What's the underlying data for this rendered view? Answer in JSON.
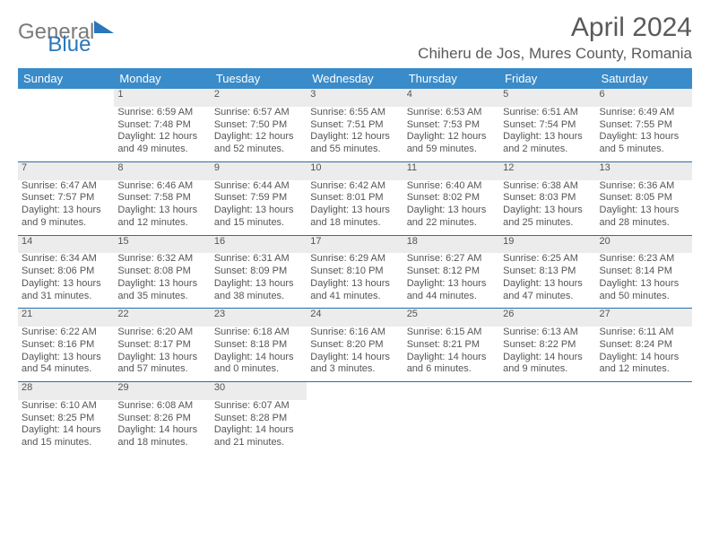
{
  "logo": {
    "part1": "General",
    "part2": "Blue"
  },
  "header": {
    "title": "April 2024",
    "location": "Chiheru de Jos, Mures County, Romania"
  },
  "weekdays": [
    "Sunday",
    "Monday",
    "Tuesday",
    "Wednesday",
    "Thursday",
    "Friday",
    "Saturday"
  ],
  "colors": {
    "header_bg": "#3a8bc9",
    "header_text": "#ffffff",
    "daynum_bg": "#ececec",
    "border": "#2a6fa8",
    "body_text": "#555555",
    "logo_gray": "#7a7a7a",
    "logo_blue": "#2a77bb"
  },
  "weeks": [
    [
      null,
      {
        "n": "1",
        "l": [
          "Sunrise: 6:59 AM",
          "Sunset: 7:48 PM",
          "Daylight: 12 hours and 49 minutes."
        ]
      },
      {
        "n": "2",
        "l": [
          "Sunrise: 6:57 AM",
          "Sunset: 7:50 PM",
          "Daylight: 12 hours and 52 minutes."
        ]
      },
      {
        "n": "3",
        "l": [
          "Sunrise: 6:55 AM",
          "Sunset: 7:51 PM",
          "Daylight: 12 hours and 55 minutes."
        ]
      },
      {
        "n": "4",
        "l": [
          "Sunrise: 6:53 AM",
          "Sunset: 7:53 PM",
          "Daylight: 12 hours and 59 minutes."
        ]
      },
      {
        "n": "5",
        "l": [
          "Sunrise: 6:51 AM",
          "Sunset: 7:54 PM",
          "Daylight: 13 hours and 2 minutes."
        ]
      },
      {
        "n": "6",
        "l": [
          "Sunrise: 6:49 AM",
          "Sunset: 7:55 PM",
          "Daylight: 13 hours and 5 minutes."
        ]
      }
    ],
    [
      {
        "n": "7",
        "l": [
          "Sunrise: 6:47 AM",
          "Sunset: 7:57 PM",
          "Daylight: 13 hours and 9 minutes."
        ]
      },
      {
        "n": "8",
        "l": [
          "Sunrise: 6:46 AM",
          "Sunset: 7:58 PM",
          "Daylight: 13 hours and 12 minutes."
        ]
      },
      {
        "n": "9",
        "l": [
          "Sunrise: 6:44 AM",
          "Sunset: 7:59 PM",
          "Daylight: 13 hours and 15 minutes."
        ]
      },
      {
        "n": "10",
        "l": [
          "Sunrise: 6:42 AM",
          "Sunset: 8:01 PM",
          "Daylight: 13 hours and 18 minutes."
        ]
      },
      {
        "n": "11",
        "l": [
          "Sunrise: 6:40 AM",
          "Sunset: 8:02 PM",
          "Daylight: 13 hours and 22 minutes."
        ]
      },
      {
        "n": "12",
        "l": [
          "Sunrise: 6:38 AM",
          "Sunset: 8:03 PM",
          "Daylight: 13 hours and 25 minutes."
        ]
      },
      {
        "n": "13",
        "l": [
          "Sunrise: 6:36 AM",
          "Sunset: 8:05 PM",
          "Daylight: 13 hours and 28 minutes."
        ]
      }
    ],
    [
      {
        "n": "14",
        "l": [
          "Sunrise: 6:34 AM",
          "Sunset: 8:06 PM",
          "Daylight: 13 hours and 31 minutes."
        ]
      },
      {
        "n": "15",
        "l": [
          "Sunrise: 6:32 AM",
          "Sunset: 8:08 PM",
          "Daylight: 13 hours and 35 minutes."
        ]
      },
      {
        "n": "16",
        "l": [
          "Sunrise: 6:31 AM",
          "Sunset: 8:09 PM",
          "Daylight: 13 hours and 38 minutes."
        ]
      },
      {
        "n": "17",
        "l": [
          "Sunrise: 6:29 AM",
          "Sunset: 8:10 PM",
          "Daylight: 13 hours and 41 minutes."
        ]
      },
      {
        "n": "18",
        "l": [
          "Sunrise: 6:27 AM",
          "Sunset: 8:12 PM",
          "Daylight: 13 hours and 44 minutes."
        ]
      },
      {
        "n": "19",
        "l": [
          "Sunrise: 6:25 AM",
          "Sunset: 8:13 PM",
          "Daylight: 13 hours and 47 minutes."
        ]
      },
      {
        "n": "20",
        "l": [
          "Sunrise: 6:23 AM",
          "Sunset: 8:14 PM",
          "Daylight: 13 hours and 50 minutes."
        ]
      }
    ],
    [
      {
        "n": "21",
        "l": [
          "Sunrise: 6:22 AM",
          "Sunset: 8:16 PM",
          "Daylight: 13 hours and 54 minutes."
        ]
      },
      {
        "n": "22",
        "l": [
          "Sunrise: 6:20 AM",
          "Sunset: 8:17 PM",
          "Daylight: 13 hours and 57 minutes."
        ]
      },
      {
        "n": "23",
        "l": [
          "Sunrise: 6:18 AM",
          "Sunset: 8:18 PM",
          "Daylight: 14 hours and 0 minutes."
        ]
      },
      {
        "n": "24",
        "l": [
          "Sunrise: 6:16 AM",
          "Sunset: 8:20 PM",
          "Daylight: 14 hours and 3 minutes."
        ]
      },
      {
        "n": "25",
        "l": [
          "Sunrise: 6:15 AM",
          "Sunset: 8:21 PM",
          "Daylight: 14 hours and 6 minutes."
        ]
      },
      {
        "n": "26",
        "l": [
          "Sunrise: 6:13 AM",
          "Sunset: 8:22 PM",
          "Daylight: 14 hours and 9 minutes."
        ]
      },
      {
        "n": "27",
        "l": [
          "Sunrise: 6:11 AM",
          "Sunset: 8:24 PM",
          "Daylight: 14 hours and 12 minutes."
        ]
      }
    ],
    [
      {
        "n": "28",
        "l": [
          "Sunrise: 6:10 AM",
          "Sunset: 8:25 PM",
          "Daylight: 14 hours and 15 minutes."
        ]
      },
      {
        "n": "29",
        "l": [
          "Sunrise: 6:08 AM",
          "Sunset: 8:26 PM",
          "Daylight: 14 hours and 18 minutes."
        ]
      },
      {
        "n": "30",
        "l": [
          "Sunrise: 6:07 AM",
          "Sunset: 8:28 PM",
          "Daylight: 14 hours and 21 minutes."
        ]
      },
      null,
      null,
      null,
      null
    ]
  ]
}
